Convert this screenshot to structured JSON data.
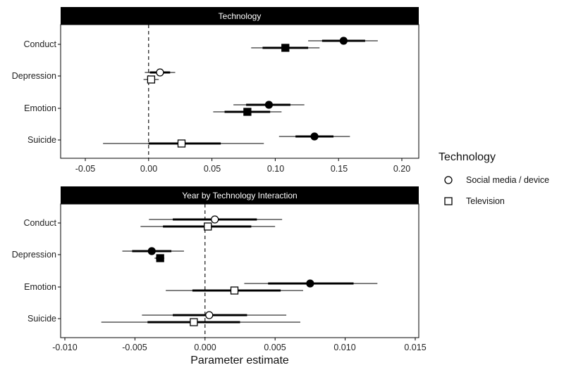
{
  "chart_data": {
    "type": "forest",
    "x_title": "Parameter estimate",
    "legend": {
      "title": "Technology",
      "position": "right",
      "entries": [
        {
          "label": "Social media / device",
          "shape": "circle"
        },
        {
          "label": "Television",
          "shape": "square"
        }
      ]
    },
    "marker_colors": {
      "filled": "#000000",
      "open": "#ffffff",
      "line": "#000000"
    },
    "panels": [
      {
        "title": "Technology",
        "xlim": [
          -0.065,
          0.215
        ],
        "ticks": [
          -0.05,
          0.0,
          0.05,
          0.1,
          0.15,
          0.2
        ],
        "tick_labels": [
          "-0.05",
          "0.00",
          "0.05",
          "0.10",
          "0.15",
          "0.20"
        ],
        "categories": [
          "Conduct",
          "Depression",
          "Emotion",
          "Suicide"
        ],
        "series": [
          {
            "category": "Conduct",
            "technology": "Social media / device",
            "filled": true,
            "estimate": 0.154,
            "ci95": [
              0.126,
              0.181
            ],
            "ci_inner": [
              0.137,
              0.171
            ]
          },
          {
            "category": "Conduct",
            "technology": "Television",
            "filled": true,
            "estimate": 0.108,
            "ci95": [
              0.081,
              0.135
            ],
            "ci_inner": [
              0.09,
              0.126
            ]
          },
          {
            "category": "Depression",
            "technology": "Social media / device",
            "filled": false,
            "estimate": 0.009,
            "ci95": [
              -0.003,
              0.021
            ],
            "ci_inner": [
              0.001,
              0.017
            ]
          },
          {
            "category": "Depression",
            "technology": "Television",
            "filled": false,
            "estimate": 0.002,
            "ci95": [
              -0.004,
              0.008
            ],
            "ci_inner": [
              -0.001,
              0.005
            ]
          },
          {
            "category": "Emotion",
            "technology": "Social media / device",
            "filled": true,
            "estimate": 0.095,
            "ci95": [
              0.067,
              0.123
            ],
            "ci_inner": [
              0.077,
              0.112
            ]
          },
          {
            "category": "Emotion",
            "technology": "Television",
            "filled": true,
            "estimate": 0.078,
            "ci95": [
              0.051,
              0.105
            ],
            "ci_inner": [
              0.06,
              0.096
            ]
          },
          {
            "category": "Suicide",
            "technology": "Social media / device",
            "filled": true,
            "estimate": 0.131,
            "ci95": [
              0.103,
              0.159
            ],
            "ci_inner": [
              0.116,
              0.146
            ]
          },
          {
            "category": "Suicide",
            "technology": "Television",
            "filled": false,
            "estimate": 0.026,
            "ci95": [
              -0.036,
              0.091
            ],
            "ci_inner": [
              0.0,
              0.057
            ]
          }
        ]
      },
      {
        "title": "Year by Technology Interaction",
        "xlim": [
          -0.0101,
          0.0151
        ],
        "ticks": [
          -0.01,
          -0.005,
          0.0,
          0.005,
          0.01,
          0.015
        ],
        "tick_labels": [
          "-0.010",
          "-0.005",
          "0.000",
          "0.005",
          "0.010",
          "0.015"
        ],
        "categories": [
          "Conduct",
          "Depression",
          "Emotion",
          "Suicide"
        ],
        "series": [
          {
            "category": "Conduct",
            "technology": "Social media / device",
            "filled": false,
            "estimate": 0.0007,
            "ci95": [
              -0.004,
              0.0055
            ],
            "ci_inner": [
              -0.0023,
              0.0037
            ]
          },
          {
            "category": "Conduct",
            "technology": "Television",
            "filled": false,
            "estimate": 0.0002,
            "ci95": [
              -0.0046,
              0.005
            ],
            "ci_inner": [
              -0.003,
              0.0033
            ]
          },
          {
            "category": "Depression",
            "technology": "Social media / device",
            "filled": true,
            "estimate": -0.0038,
            "ci95": [
              -0.0059,
              -0.0015
            ],
            "ci_inner": [
              -0.0052,
              -0.0024
            ]
          },
          {
            "category": "Depression",
            "technology": "Television",
            "filled": true,
            "estimate": -0.0032,
            "ci95": [
              -0.0036,
              -0.0029
            ],
            "ci_inner": [
              -0.0035,
              -0.003
            ]
          },
          {
            "category": "Emotion",
            "technology": "Social media / device",
            "filled": true,
            "estimate": 0.0075,
            "ci95": [
              0.0028,
              0.0123
            ],
            "ci_inner": [
              0.0045,
              0.0106
            ]
          },
          {
            "category": "Emotion",
            "technology": "Television",
            "filled": false,
            "estimate": 0.0021,
            "ci95": [
              -0.0028,
              0.007
            ],
            "ci_inner": [
              -0.0009,
              0.0054
            ]
          },
          {
            "category": "Suicide",
            "technology": "Social media / device",
            "filled": false,
            "estimate": 0.0003,
            "ci95": [
              -0.0045,
              0.0058
            ],
            "ci_inner": [
              -0.0023,
              0.003
            ]
          },
          {
            "category": "Suicide",
            "technology": "Television",
            "filled": false,
            "estimate": -0.0008,
            "ci95": [
              -0.0074,
              0.0068
            ],
            "ci_inner": [
              -0.0041,
              0.0025
            ]
          }
        ]
      }
    ]
  }
}
